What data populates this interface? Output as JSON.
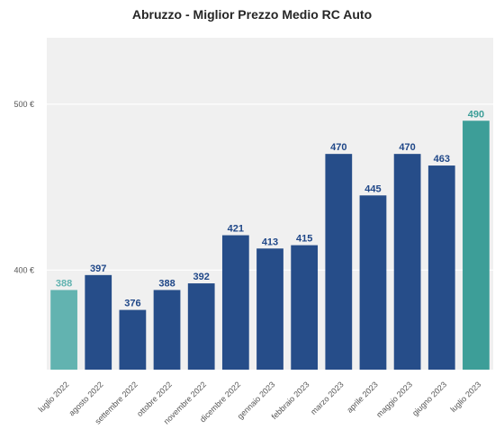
{
  "chart_data": {
    "type": "bar",
    "title": "Abruzzo - Miglior Prezzo Medio RC Auto",
    "xlabel": "",
    "ylabel": "",
    "ylim": [
      340,
      540
    ],
    "yticks": [
      400,
      500
    ],
    "ytick_suffix": " €",
    "grid": true,
    "categories": [
      "luglio 2022",
      "agosto 2022",
      "settembre 2022",
      "ottobre 2022",
      "novembre 2022",
      "dicembre 2022",
      "gennaio 2023",
      "febbraio 2023",
      "marzo 2023",
      "aprile 2023",
      "maggio 2023",
      "giugno 2023",
      "luglio 2023"
    ],
    "values": [
      388,
      397,
      376,
      388,
      392,
      421,
      413,
      415,
      470,
      445,
      470,
      463,
      490
    ],
    "colors": [
      "#62b3b0",
      "#264d89",
      "#264d89",
      "#264d89",
      "#264d89",
      "#264d89",
      "#264d89",
      "#264d89",
      "#264d89",
      "#264d89",
      "#264d89",
      "#264d89",
      "#3d9e98"
    ],
    "label_colors": [
      "#62b3b0",
      "#1f4788",
      "#1f4788",
      "#1f4788",
      "#1f4788",
      "#1f4788",
      "#1f4788",
      "#1f4788",
      "#1f4788",
      "#1f4788",
      "#1f4788",
      "#1f4788",
      "#3d9e98"
    ]
  }
}
